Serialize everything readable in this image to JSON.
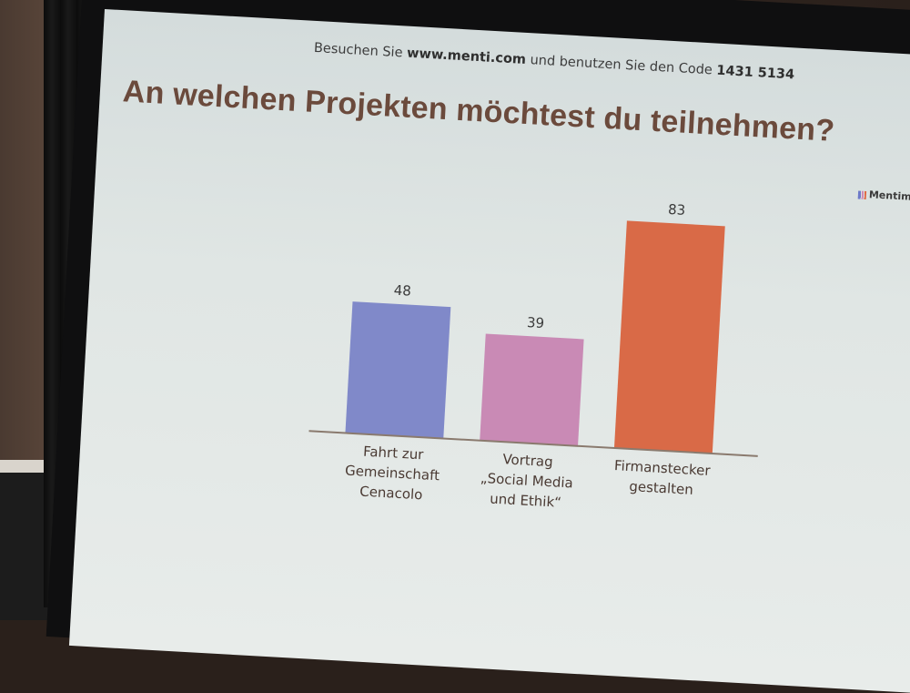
{
  "slide": {
    "join_prefix": "Besuchen Sie ",
    "join_url": "www.menti.com",
    "join_middle": " und benutzen Sie den Code ",
    "join_code": "1431 5134",
    "question": "An welchen Projekten möchtest du teilnehmen?",
    "brand": "Mentime"
  },
  "colors": {
    "bar_1": "#8089c9",
    "bar_2": "#c98ab5",
    "bar_3": "#d96a47",
    "axis": "#8a7a6e",
    "value_label": "#3b3b3b",
    "category_label": "#4a3a33"
  },
  "chart_data": {
    "type": "bar",
    "title": "An welchen Projekten möchtest du teilnehmen?",
    "categories": [
      [
        "Fahrt zur",
        "Gemeinschaft",
        "Cenacolo"
      ],
      [
        "Vortrag",
        "„Social Media",
        "und Ethik“"
      ],
      [
        "Firmanstecker",
        "gestalten"
      ]
    ],
    "values": [
      48,
      39,
      83
    ],
    "ylim": [
      0,
      83
    ],
    "grid": false,
    "legend": "none"
  }
}
